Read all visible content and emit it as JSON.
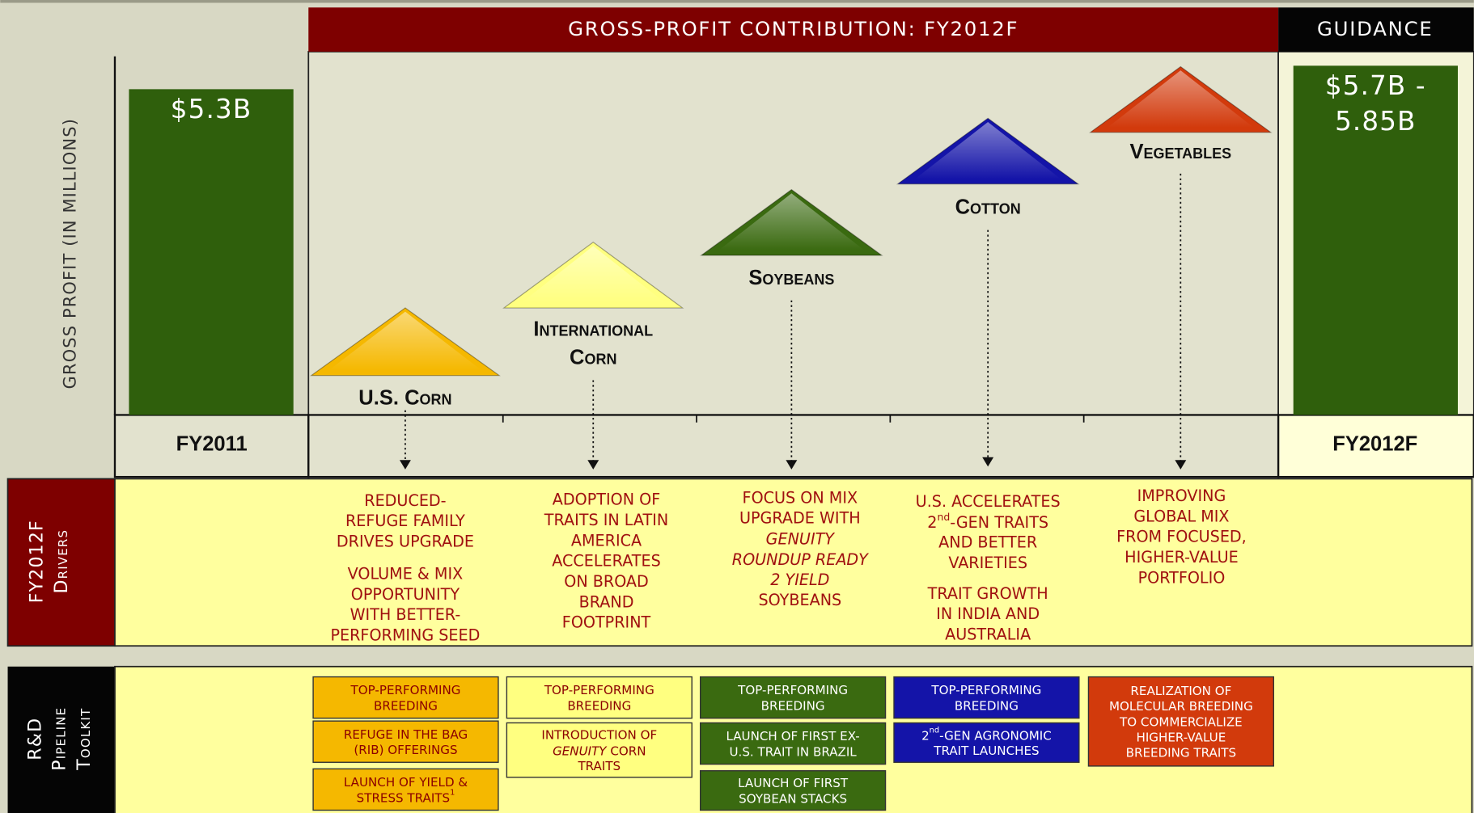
{
  "header": {
    "title": "GROSS-PROFIT CONTRIBUTION: FY2012F",
    "guidance": "GUIDANCE"
  },
  "y_axis_label": "GROSS PROFIT (IN MILLIONS)",
  "bars": [
    {
      "label": [
        "$5.3B"
      ],
      "period": "FY2011",
      "color": "#2f5f0c"
    },
    {
      "label": [
        "$5.7B -",
        "5.85B"
      ],
      "period": "FY2012F",
      "color": "#2f5f0c"
    }
  ],
  "drivers_label": [
    "FY2012F",
    "Drivers"
  ],
  "toolkit_label": [
    "R&D",
    "Pipeline",
    "Toolkit"
  ],
  "crops": [
    {
      "name": [
        "U.S. Corn"
      ],
      "color": "#f5b800",
      "box_text_color": "#8b0000",
      "drivers": [
        [
          "REDUCED-",
          "REFUGE FAMILY",
          "DRIVES UPGRADE"
        ],
        [
          "VOLUME & MIX",
          "OPPORTUNITY",
          "WITH BETTER-",
          "PERFORMING SEED"
        ]
      ],
      "toolkit": [
        [
          "TOP-PERFORMING",
          "BREEDING"
        ],
        [
          "REFUGE IN THE BAG",
          "(RIB) OFFERINGS"
        ],
        [
          "LAUNCH OF YIELD &",
          [
            "STRESS TRAITS",
            {
              "text": "1",
              "style": "sup"
            }
          ]
        ]
      ]
    },
    {
      "name": [
        "International",
        "Corn"
      ],
      "color": "#ffff80",
      "box_text_color": "#8b0000",
      "drivers": [
        [
          "ADOPTION OF",
          "TRAITS IN LATIN",
          "AMERICA",
          "ACCELERATES",
          "ON BROAD",
          "BRAND",
          "FOOTPRINT"
        ]
      ],
      "toolkit": [
        [
          "TOP-PERFORMING",
          "BREEDING"
        ],
        [
          "INTRODUCTION OF",
          [
            {
              "text": "GENUITY",
              "style": "italic"
            },
            " CORN"
          ],
          "TRAITS"
        ]
      ]
    },
    {
      "name": [
        "Soybeans"
      ],
      "color": "#3a6a10",
      "box_text_color": "#ffffff",
      "drivers": [
        [
          "FOCUS ON MIX",
          "UPGRADE WITH",
          [
            {
              "text": "GENUITY",
              "style": "italic"
            }
          ],
          [
            {
              "text": "ROUNDUP READY",
              "style": "italic"
            }
          ],
          [
            {
              "text": "2 YIELD",
              "style": "italic"
            }
          ],
          "SOYBEANS"
        ]
      ],
      "toolkit": [
        [
          "TOP-PERFORMING",
          "BREEDING"
        ],
        [
          "LAUNCH OF FIRST EX-",
          "U.S. TRAIT IN BRAZIL"
        ],
        [
          "LAUNCH OF FIRST",
          "SOYBEAN STACKS"
        ]
      ]
    },
    {
      "name": [
        "Cotton"
      ],
      "color": "#1414a8",
      "box_text_color": "#ffffff",
      "drivers": [
        [
          "U.S. ACCELERATES",
          [
            "2",
            {
              "text": "nd",
              "style": "sup"
            },
            "-GEN TRAITS"
          ],
          "AND BETTER",
          "VARIETIES"
        ],
        [
          "TRAIT GROWTH",
          "IN INDIA AND",
          "AUSTRALIA"
        ]
      ],
      "toolkit": [
        [
          "TOP-PERFORMING",
          "BREEDING"
        ],
        [
          [
            "2",
            {
              "text": "nd",
              "style": "sup"
            },
            "-GEN AGRONOMIC"
          ],
          "TRAIT LAUNCHES"
        ]
      ]
    },
    {
      "name": [
        "Vegetables"
      ],
      "color": "#d23a0c",
      "box_text_color": "#ffffff",
      "drivers": [
        [
          "IMPROVING",
          "GLOBAL MIX",
          "FROM FOCUSED,",
          "HIGHER-VALUE",
          "PORTFOLIO"
        ]
      ],
      "toolkit": [
        [
          "REALIZATION OF",
          "MOLECULAR BREEDING",
          "TO COMMERCIALIZE",
          "HIGHER-VALUE",
          "BREEDING TRAITS"
        ]
      ]
    }
  ]
}
